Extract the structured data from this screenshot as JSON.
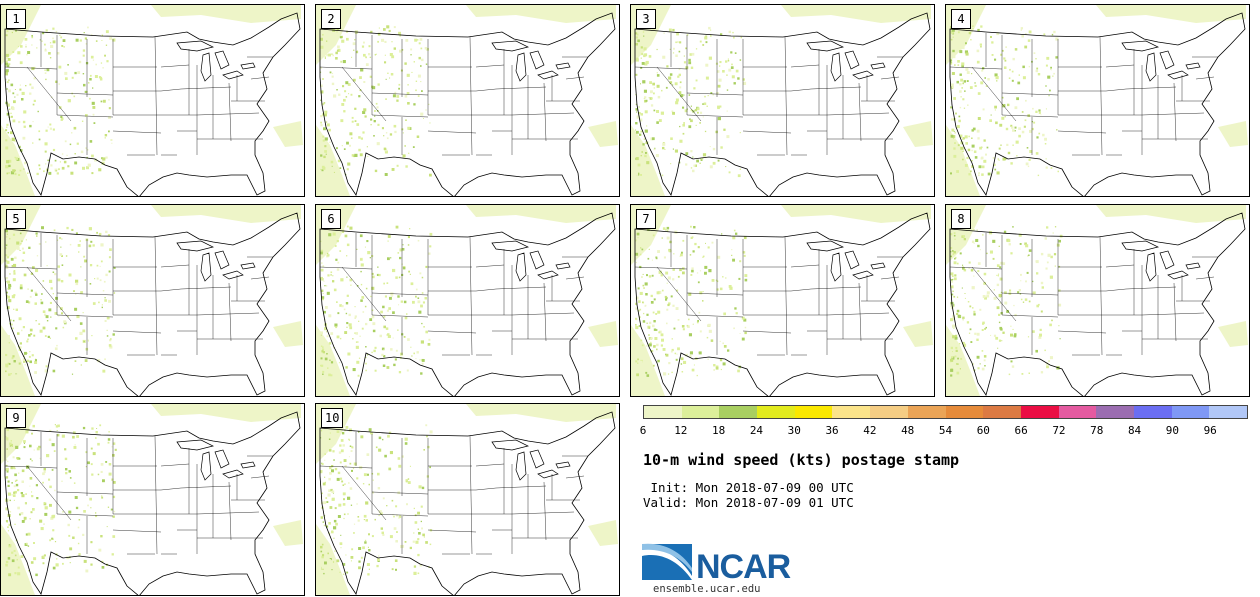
{
  "panels": [
    {
      "label": "1"
    },
    {
      "label": "2"
    },
    {
      "label": "3"
    },
    {
      "label": "4"
    },
    {
      "label": "5"
    },
    {
      "label": "6"
    },
    {
      "label": "7"
    },
    {
      "label": "8"
    },
    {
      "label": "9"
    },
    {
      "label": "10"
    }
  ],
  "colorbar": {
    "colors": [
      "#eef5c8",
      "#dcef9a",
      "#a9cf61",
      "#e2eb1e",
      "#fae800",
      "#fbe48a",
      "#f5cd84",
      "#eba456",
      "#e68b3a",
      "#dc7a43",
      "#eb0e44",
      "#e45aa0",
      "#9b6db1",
      "#6b6ef2",
      "#7f98f5",
      "#b1c7f7"
    ],
    "ticks": [
      "6",
      "12",
      "18",
      "24",
      "30",
      "36",
      "42",
      "48",
      "54",
      "60",
      "66",
      "72",
      "78",
      "84",
      "90",
      "96"
    ]
  },
  "title": "10-m wind speed (kts) postage stamp",
  "init": " Init: Mon 2018-07-09 00 UTC",
  "valid": "Valid: Mon 2018-07-09 01 UTC",
  "logo": {
    "text": "NCAR",
    "url": "ensemble.ucar.edu",
    "brand_color": "#1a5d9e"
  }
}
